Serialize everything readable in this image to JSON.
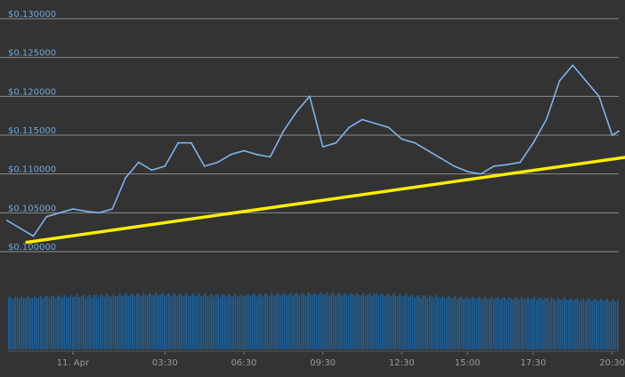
{
  "chart_data": [
    {
      "type": "line",
      "title": "",
      "xlabel": "",
      "ylabel": "",
      "grid": true,
      "colors": {
        "background": "#333333",
        "grid": "#8c8c8c",
        "price": "#7fb3e8",
        "label": "#6fa8dc",
        "trendline": "#ffee00",
        "volume": "#1f5f96",
        "xtick": "#9a9a9a"
      },
      "ylim": [
        0.1,
        0.13
      ],
      "y_ticks": [
        0.13,
        0.125,
        0.12,
        0.115,
        0.11,
        0.105,
        0.1
      ],
      "y_tick_labels": [
        "$0.130000",
        "$0.125000",
        "$0.120000",
        "$0.115000",
        "$0.110000",
        "$0.105000",
        "$0.100000"
      ],
      "x_range": [
        "10 Apr 21:30",
        "11 Apr 20:45"
      ],
      "x_ticks": [
        "11 Apr 00:00",
        "11 Apr 03:30",
        "11 Apr 06:30",
        "11 Apr 09:30",
        "11 Apr 12:30",
        "11 Apr 15:00",
        "11 Apr 17:30",
        "11 Apr 20:30"
      ],
      "x_tick_labels": [
        "11. Apr",
        "03:30",
        "06:30",
        "09:30",
        "12:30",
        "15:00",
        "17:30",
        "20:30"
      ],
      "series": [
        {
          "x": [
            "10 Apr 21:30",
            "10 Apr 22:00",
            "10 Apr 22:30",
            "10 Apr 23:00",
            "10 Apr 23:30",
            "11 Apr 00:00",
            "11 Apr 00:30",
            "11 Apr 01:00",
            "11 Apr 01:30",
            "11 Apr 02:00",
            "11 Apr 02:30",
            "11 Apr 03:00",
            "11 Apr 03:30",
            "11 Apr 04:00",
            "11 Apr 04:30",
            "11 Apr 05:00",
            "11 Apr 05:30",
            "11 Apr 06:00",
            "11 Apr 06:30",
            "11 Apr 07:00",
            "11 Apr 07:30",
            "11 Apr 08:00",
            "11 Apr 08:30",
            "11 Apr 09:00",
            "11 Apr 09:30",
            "11 Apr 10:00",
            "11 Apr 10:30",
            "11 Apr 11:00",
            "11 Apr 11:30",
            "11 Apr 12:00",
            "11 Apr 12:30",
            "11 Apr 13:00",
            "11 Apr 13:30",
            "11 Apr 14:00",
            "11 Apr 14:30",
            "11 Apr 15:00",
            "11 Apr 15:30",
            "11 Apr 16:00",
            "11 Apr 16:30",
            "11 Apr 17:00",
            "11 Apr 17:30",
            "11 Apr 18:00",
            "11 Apr 18:30",
            "11 Apr 19:00",
            "11 Apr 19:30",
            "11 Apr 20:00",
            "11 Apr 20:30",
            "11 Apr 20:45"
          ],
          "values": [
            0.104,
            0.103,
            0.102,
            0.1045,
            0.105,
            0.1055,
            0.1052,
            0.105,
            0.1055,
            0.1095,
            0.1115,
            0.1105,
            0.111,
            0.114,
            0.114,
            0.111,
            0.1115,
            0.1125,
            0.113,
            0.1125,
            0.1122,
            0.1155,
            0.118,
            0.12,
            0.1135,
            0.114,
            0.116,
            0.117,
            0.1165,
            0.116,
            0.1145,
            0.114,
            0.113,
            0.112,
            0.111,
            0.1103,
            0.11,
            0.111,
            0.1112,
            0.1115,
            0.114,
            0.117,
            0.122,
            0.124,
            0.122,
            0.12,
            0.115,
            0.1155
          ]
        },
        {
          "type": "trendline",
          "x": [
            "10 Apr 22:15",
            "11 Apr 20:45"
          ],
          "values": [
            0.1012,
            0.1118
          ]
        },
        {
          "type": "volume",
          "x": [
            "10 Apr 21:30",
            "11 Apr 00:00",
            "11 Apr 03:00",
            "11 Apr 06:00",
            "11 Apr 09:00",
            "11 Apr 12:00",
            "11 Apr 15:00",
            "11 Apr 18:00",
            "11 Apr 20:45"
          ],
          "values": [
            0.84,
            0.87,
            0.9,
            0.88,
            0.91,
            0.89,
            0.84,
            0.83,
            0.8
          ]
        }
      ]
    }
  ]
}
